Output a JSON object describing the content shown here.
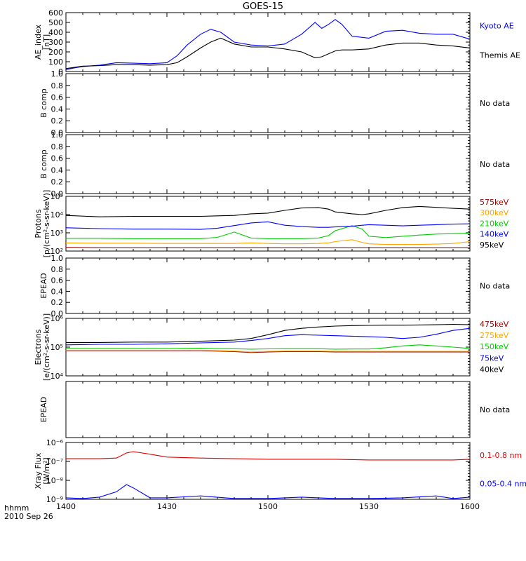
{
  "title": "GOES-15",
  "footer": {
    "line1": "hhmm",
    "line2": "2010 Sep 26"
  },
  "x_ticks": [
    "1400",
    "1430",
    "1500",
    "1530",
    "1600"
  ],
  "colors": {
    "black": "#000000",
    "blue": "#0000ff",
    "green": "#00cc00",
    "orange": "#ffa500",
    "darkred": "#990000",
    "red": "#dd0000"
  },
  "chart_data": [
    {
      "type": "line",
      "ylabel": [
        "AE_index",
        "[nT]"
      ],
      "ylim": [
        0,
        600
      ],
      "yscale": "linear",
      "yticks": [
        "0",
        "100",
        "200",
        "300",
        "400",
        "500",
        "600"
      ],
      "ytick_values": [
        0,
        100,
        200,
        300,
        400,
        500,
        600
      ],
      "x": [
        1400,
        1403,
        1405,
        1410,
        1415,
        1420,
        1425,
        1430,
        1433,
        1436,
        1440,
        1443,
        1446,
        1450,
        1455,
        1500,
        1505,
        1510,
        1512,
        1514,
        1516,
        1518,
        1520,
        1522,
        1525,
        1530,
        1535,
        1540,
        1545,
        1550,
        1555,
        1600
      ],
      "series": [
        {
          "name": "Kyoto AE",
          "color": "#0000ff",
          "values": [
            20,
            40,
            50,
            65,
            90,
            85,
            80,
            90,
            160,
            270,
            380,
            430,
            400,
            300,
            270,
            260,
            280,
            380,
            440,
            500,
            440,
            480,
            530,
            480,
            360,
            340,
            410,
            420,
            390,
            380,
            380,
            330
          ]
        },
        {
          "name": "Themis AE",
          "color": "#000000",
          "values": [
            30,
            45,
            55,
            60,
            70,
            70,
            65,
            70,
            90,
            150,
            240,
            300,
            340,
            280,
            250,
            250,
            230,
            200,
            170,
            140,
            150,
            180,
            210,
            220,
            220,
            230,
            270,
            290,
            290,
            270,
            260,
            240
          ]
        }
      ],
      "legend": [
        "Kyoto AE",
        "Themis AE"
      ]
    },
    {
      "type": "line",
      "ylabel": [
        "B comp"
      ],
      "ylim": [
        0,
        1
      ],
      "yscale": "linear",
      "yticks": [
        "0.0",
        "0.2",
        "0.4",
        "0.6",
        "0.8",
        "1.0"
      ],
      "ytick_values": [
        0,
        0.2,
        0.4,
        0.6,
        0.8,
        1.0
      ],
      "series": [],
      "note": "No data"
    },
    {
      "type": "line",
      "ylabel": [
        "B comp"
      ],
      "ylim": [
        0,
        1
      ],
      "yscale": "linear",
      "yticks": [
        "0.0",
        "0.2",
        "0.4",
        "0.6",
        "0.8",
        "1.0"
      ],
      "ytick_values": [
        0,
        0.2,
        0.4,
        0.6,
        0.8,
        1.0
      ],
      "series": [],
      "note": "No data"
    },
    {
      "type": "line",
      "ylabel": [
        "Protons",
        "[p/(cm²-s-sr-keV)]"
      ],
      "ylim": [
        100,
        100000
      ],
      "yscale": "log",
      "yticks": [
        "10²",
        "10³",
        "10⁴",
        "10⁵"
      ],
      "ytick_values": [
        100,
        1000,
        10000,
        100000
      ],
      "x": [
        1400,
        1410,
        1420,
        1430,
        1440,
        1445,
        1450,
        1455,
        1500,
        1505,
        1510,
        1515,
        1518,
        1520,
        1525,
        1528,
        1530,
        1535,
        1540,
        1545,
        1550,
        1555,
        1600
      ],
      "series": [
        {
          "name": "575keV",
          "color": "#990000",
          "values": [
            160,
            150,
            150,
            150,
            150,
            150,
            150,
            150,
            150,
            150,
            150,
            150,
            150,
            150,
            150,
            150,
            150,
            150,
            150,
            150,
            150,
            150,
            150
          ]
        },
        {
          "name": "300keV",
          "color": "#ffa500",
          "values": [
            280,
            270,
            270,
            260,
            260,
            260,
            260,
            280,
            260,
            250,
            250,
            260,
            280,
            330,
            420,
            300,
            250,
            230,
            230,
            230,
            240,
            260,
            330
          ]
        },
        {
          "name": "210keV",
          "color": "#00cc00",
          "values": [
            500,
            500,
            480,
            480,
            480,
            560,
            1100,
            520,
            480,
            480,
            480,
            520,
            700,
            1300,
            2500,
            1600,
            650,
            550,
            650,
            750,
            850,
            900,
            950
          ]
        },
        {
          "name": "140keV",
          "color": "#0000ff",
          "values": [
            1900,
            1700,
            1600,
            1600,
            1550,
            1800,
            2500,
            3500,
            4000,
            2600,
            2200,
            2000,
            2000,
            2100,
            2300,
            2600,
            2800,
            2600,
            2400,
            2600,
            2800,
            3000,
            3100
          ]
        },
        {
          "name": "95keV",
          "color": "#000000",
          "values": [
            9000,
            7500,
            8000,
            8000,
            8000,
            8500,
            9000,
            11000,
            12000,
            17000,
            23000,
            24000,
            20000,
            14000,
            11000,
            10000,
            11000,
            17000,
            24000,
            28000,
            25000,
            22000,
            20000
          ]
        }
      ],
      "legend": [
        "575keV",
        "300keV",
        "210keV",
        "140keV",
        "95keV"
      ]
    },
    {
      "type": "line",
      "ylabel": [
        "EPEAD"
      ],
      "ylim": [
        0,
        1
      ],
      "yscale": "linear",
      "yticks": [
        "0.0",
        "0.2",
        "0.4",
        "0.6",
        "0.8",
        "1.0"
      ],
      "ytick_values": [
        0,
        0.2,
        0.4,
        0.6,
        0.8,
        1.0
      ],
      "series": [],
      "note": "No data"
    },
    {
      "type": "line",
      "ylabel": [
        "Electrons",
        "[e/(cm²-s-sr-keV)]"
      ],
      "ylim": [
        10000,
        1000000
      ],
      "yscale": "log",
      "yticks": [
        "10⁴",
        "10⁵",
        "10⁶"
      ],
      "ytick_values": [
        10000,
        100000,
        1000000
      ],
      "x": [
        1400,
        1410,
        1420,
        1430,
        1440,
        1450,
        1455,
        1500,
        1505,
        1510,
        1515,
        1520,
        1525,
        1530,
        1535,
        1540,
        1545,
        1550,
        1555,
        1600
      ],
      "series": [
        {
          "name": "475keV",
          "color": "#990000",
          "values": [
            75000,
            75000,
            75000,
            75000,
            75000,
            70000,
            65000,
            68000,
            70000,
            70000,
            70000,
            68000,
            68000,
            68000,
            68000,
            68000,
            68000,
            68000,
            68000,
            68000
          ]
        },
        {
          "name": "275keV",
          "color": "#ffa500",
          "values": [
            78000,
            78000,
            78000,
            78000,
            78000,
            73000,
            68000,
            71000,
            73000,
            73000,
            73000,
            71000,
            71000,
            71000,
            71000,
            71000,
            71000,
            71000,
            71000,
            71000
          ]
        },
        {
          "name": "150keV",
          "color": "#00cc00",
          "values": [
            90000,
            90000,
            90000,
            90000,
            92000,
            88000,
            85000,
            87000,
            88000,
            88000,
            88000,
            85000,
            86000,
            86000,
            95000,
            110000,
            120000,
            110000,
            100000,
            90000
          ]
        },
        {
          "name": "75keV",
          "color": "#0000ff",
          "values": [
            120000,
            125000,
            125000,
            130000,
            140000,
            150000,
            170000,
            200000,
            250000,
            270000,
            260000,
            250000,
            240000,
            230000,
            220000,
            200000,
            220000,
            280000,
            380000,
            450000
          ]
        },
        {
          "name": "40keV",
          "color": "#000000",
          "values": [
            145000,
            145000,
            150000,
            150000,
            160000,
            175000,
            200000,
            270000,
            380000,
            450000,
            500000,
            540000,
            560000,
            570000,
            580000,
            580000,
            590000,
            600000,
            620000,
            600000
          ]
        }
      ],
      "legend": [
        "475keV",
        "275keV",
        "150keV",
        "75keV",
        "40keV"
      ]
    },
    {
      "type": "line",
      "ylabel": [
        "EPEAD"
      ],
      "ylim": [
        0,
        1
      ],
      "yscale": "linear",
      "yticks": [],
      "ytick_values": [],
      "series": [],
      "note": "No data"
    },
    {
      "type": "line",
      "ylabel": [
        "Xray Flux",
        "[W/m²]"
      ],
      "ylim": [
        1e-09,
        1e-06
      ],
      "yscale": "log",
      "yticks": [
        "10⁻⁹",
        "10⁻⁸",
        "10⁻⁷",
        "10⁻⁶"
      ],
      "ytick_values": [
        1e-09,
        1e-08,
        1e-07,
        1e-06
      ],
      "x": [
        1400,
        1405,
        1410,
        1415,
        1418,
        1420,
        1425,
        1430,
        1440,
        1450,
        1500,
        1510,
        1520,
        1530,
        1540,
        1550,
        1555,
        1600
      ],
      "series": [
        {
          "name": "0.1-0.8 nm",
          "color": "#dd0000",
          "values": [
            1.4e-07,
            1.4e-07,
            1.4e-07,
            1.5e-07,
            2.8e-07,
            3.3e-07,
            2.4e-07,
            1.7e-07,
            1.5e-07,
            1.4e-07,
            1.3e-07,
            1.3e-07,
            1.3e-07,
            1.2e-07,
            1.2e-07,
            1.2e-07,
            1.2e-07,
            1.3e-07
          ]
        },
        {
          "name": "0.05-0.4 nm",
          "color": "#0000ff",
          "values": [
            1.2e-09,
            1.1e-09,
            1.3e-09,
            2.5e-09,
            6e-09,
            4e-09,
            1.2e-09,
            1.2e-09,
            1.5e-09,
            1.1e-09,
            1.1e-09,
            1.3e-09,
            1.1e-09,
            1.1e-09,
            1.2e-09,
            1.5e-09,
            1.1e-09,
            1.3e-09
          ]
        }
      ],
      "legend": [
        "0.1-0.8 nm",
        "0.05-0.4 nm"
      ]
    }
  ]
}
